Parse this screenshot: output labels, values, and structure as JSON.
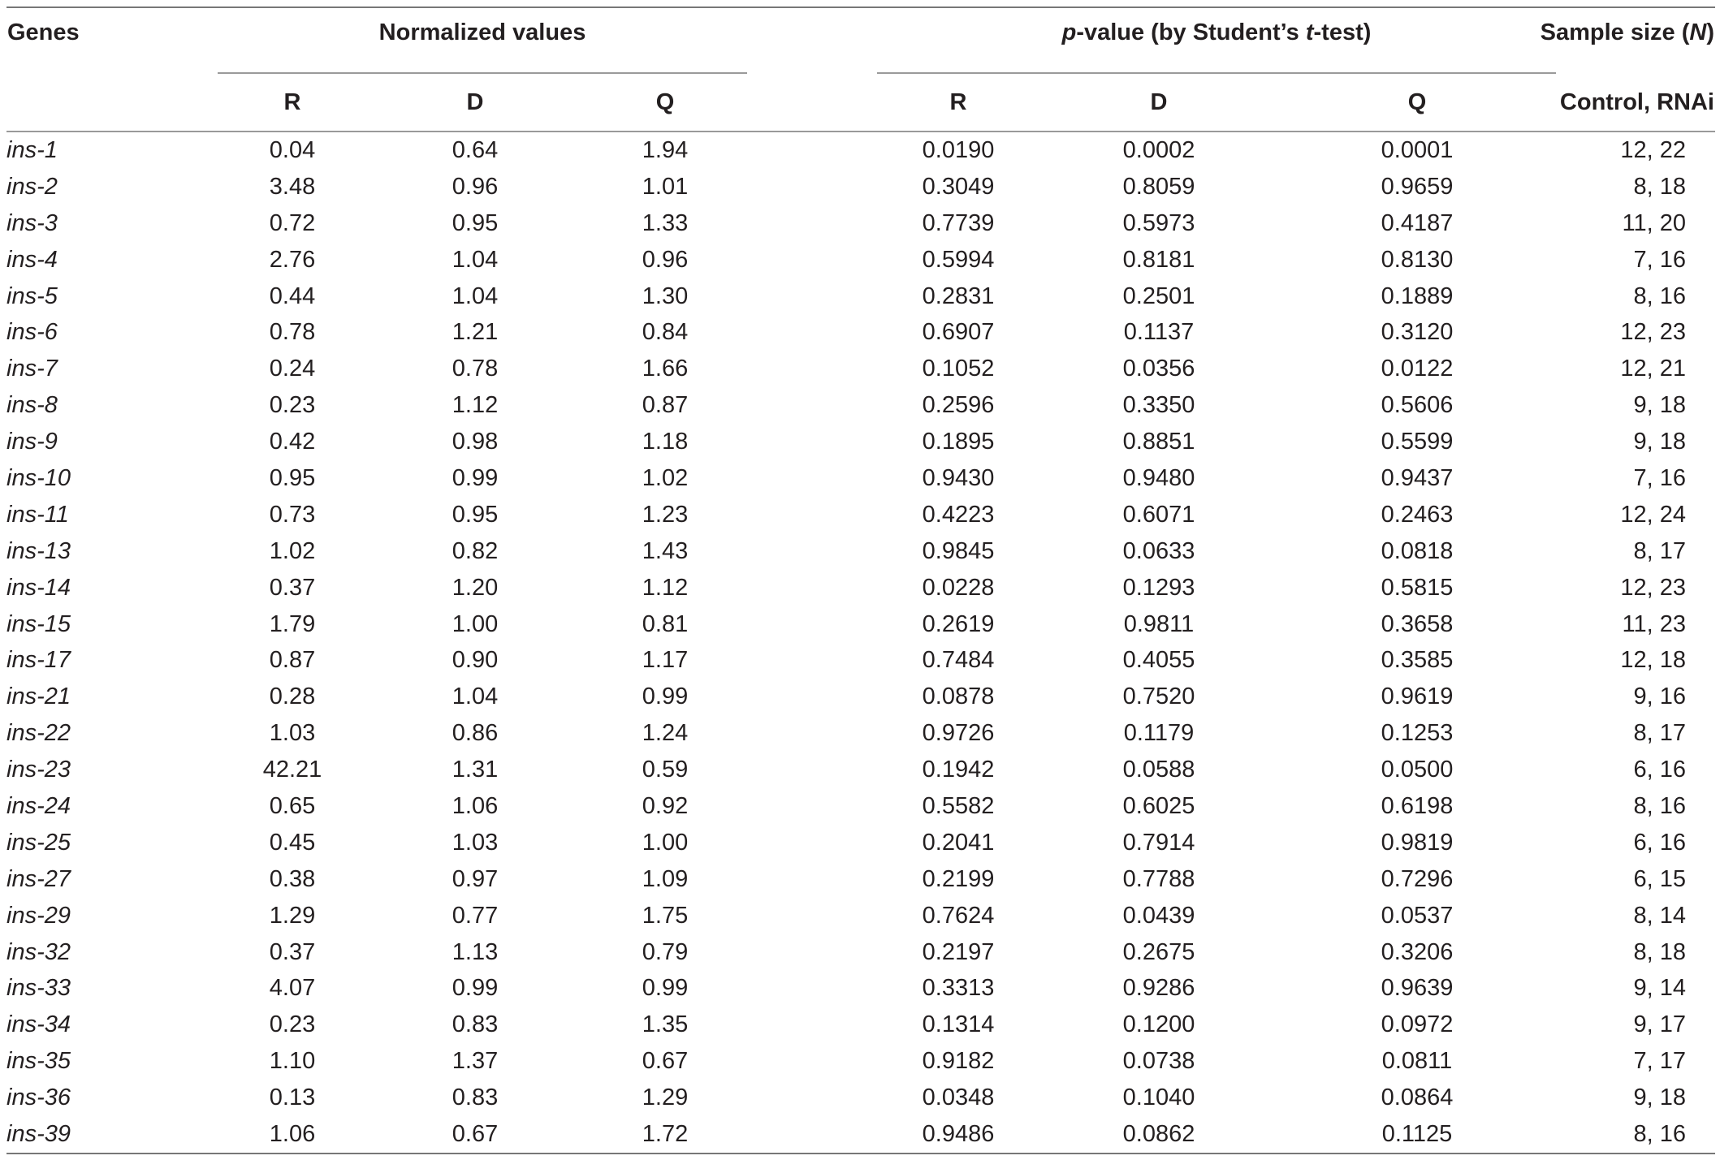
{
  "header": {
    "genes_label": "Genes",
    "normalized_label": "Normalized values",
    "pvalue_label_p": "p",
    "pvalue_label_rest": "-value (by Student’s ",
    "pvalue_label_t": "t",
    "pvalue_label_end": "-test)",
    "sample_label_main": "Sample size (",
    "sample_label_n": "N",
    "sample_label_end": ")",
    "sub_r": "R",
    "sub_d": "D",
    "sub_q": "Q",
    "sub_pr": "R",
    "sub_pd": "D",
    "sub_pq": "Q",
    "sub_sample": "Control, RNAi"
  },
  "rows": [
    {
      "gene": "ins-1",
      "r": "0.04",
      "d": "0.64",
      "q": "1.94",
      "pr": "0.0190",
      "pd": "0.0002",
      "pq": "0.0001",
      "n": "12, 22"
    },
    {
      "gene": "ins-2",
      "r": "3.48",
      "d": "0.96",
      "q": "1.01",
      "pr": "0.3049",
      "pd": "0.8059",
      "pq": "0.9659",
      "n": "8, 18"
    },
    {
      "gene": "ins-3",
      "r": "0.72",
      "d": "0.95",
      "q": "1.33",
      "pr": "0.7739",
      "pd": "0.5973",
      "pq": "0.4187",
      "n": "11, 20"
    },
    {
      "gene": "ins-4",
      "r": "2.76",
      "d": "1.04",
      "q": "0.96",
      "pr": "0.5994",
      "pd": "0.8181",
      "pq": "0.8130",
      "n": "7, 16"
    },
    {
      "gene": "ins-5",
      "r": "0.44",
      "d": "1.04",
      "q": "1.30",
      "pr": "0.2831",
      "pd": "0.2501",
      "pq": "0.1889",
      "n": "8, 16"
    },
    {
      "gene": "ins-6",
      "r": "0.78",
      "d": "1.21",
      "q": "0.84",
      "pr": "0.6907",
      "pd": "0.1137",
      "pq": "0.3120",
      "n": "12, 23"
    },
    {
      "gene": "ins-7",
      "r": "0.24",
      "d": "0.78",
      "q": "1.66",
      "pr": "0.1052",
      "pd": "0.0356",
      "pq": "0.0122",
      "n": "12, 21"
    },
    {
      "gene": "ins-8",
      "r": "0.23",
      "d": "1.12",
      "q": "0.87",
      "pr": "0.2596",
      "pd": "0.3350",
      "pq": "0.5606",
      "n": "9, 18"
    },
    {
      "gene": "ins-9",
      "r": "0.42",
      "d": "0.98",
      "q": "1.18",
      "pr": "0.1895",
      "pd": "0.8851",
      "pq": "0.5599",
      "n": "9, 18"
    },
    {
      "gene": "ins-10",
      "r": "0.95",
      "d": "0.99",
      "q": "1.02",
      "pr": "0.9430",
      "pd": "0.9480",
      "pq": "0.9437",
      "n": "7, 16"
    },
    {
      "gene": "ins-11",
      "r": "0.73",
      "d": "0.95",
      "q": "1.23",
      "pr": "0.4223",
      "pd": "0.6071",
      "pq": "0.2463",
      "n": "12, 24"
    },
    {
      "gene": "ins-13",
      "r": "1.02",
      "d": "0.82",
      "q": "1.43",
      "pr": "0.9845",
      "pd": "0.0633",
      "pq": "0.0818",
      "n": "8, 17"
    },
    {
      "gene": "ins-14",
      "r": "0.37",
      "d": "1.20",
      "q": "1.12",
      "pr": "0.0228",
      "pd": "0.1293",
      "pq": "0.5815",
      "n": "12, 23"
    },
    {
      "gene": "ins-15",
      "r": "1.79",
      "d": "1.00",
      "q": "0.81",
      "pr": "0.2619",
      "pd": "0.9811",
      "pq": "0.3658",
      "n": "11, 23"
    },
    {
      "gene": "ins-17",
      "r": "0.87",
      "d": "0.90",
      "q": "1.17",
      "pr": "0.7484",
      "pd": "0.4055",
      "pq": "0.3585",
      "n": "12, 18"
    },
    {
      "gene": "ins-21",
      "r": "0.28",
      "d": "1.04",
      "q": "0.99",
      "pr": "0.0878",
      "pd": "0.7520",
      "pq": "0.9619",
      "n": "9, 16"
    },
    {
      "gene": "ins-22",
      "r": "1.03",
      "d": "0.86",
      "q": "1.24",
      "pr": "0.9726",
      "pd": "0.1179",
      "pq": "0.1253",
      "n": "8, 17"
    },
    {
      "gene": "ins-23",
      "r": "42.21",
      "d": "1.31",
      "q": "0.59",
      "pr": "0.1942",
      "pd": "0.0588",
      "pq": "0.0500",
      "n": "6, 16"
    },
    {
      "gene": "ins-24",
      "r": "0.65",
      "d": "1.06",
      "q": "0.92",
      "pr": "0.5582",
      "pd": "0.6025",
      "pq": "0.6198",
      "n": "8, 16"
    },
    {
      "gene": "ins-25",
      "r": "0.45",
      "d": "1.03",
      "q": "1.00",
      "pr": "0.2041",
      "pd": "0.7914",
      "pq": "0.9819",
      "n": "6, 16"
    },
    {
      "gene": "ins-27",
      "r": "0.38",
      "d": "0.97",
      "q": "1.09",
      "pr": "0.2199",
      "pd": "0.7788",
      "pq": "0.7296",
      "n": "6, 15"
    },
    {
      "gene": "ins-29",
      "r": "1.29",
      "d": "0.77",
      "q": "1.75",
      "pr": "0.7624",
      "pd": "0.0439",
      "pq": "0.0537",
      "n": "8, 14"
    },
    {
      "gene": "ins-32",
      "r": "0.37",
      "d": "1.13",
      "q": "0.79",
      "pr": "0.2197",
      "pd": "0.2675",
      "pq": "0.3206",
      "n": "8, 18"
    },
    {
      "gene": "ins-33",
      "r": "4.07",
      "d": "0.99",
      "q": "0.99",
      "pr": "0.3313",
      "pd": "0.9286",
      "pq": "0.9639",
      "n": "9, 14"
    },
    {
      "gene": "ins-34",
      "r": "0.23",
      "d": "0.83",
      "q": "1.35",
      "pr": "0.1314",
      "pd": "0.1200",
      "pq": "0.0972",
      "n": "9, 17"
    },
    {
      "gene": "ins-35",
      "r": "1.10",
      "d": "1.37",
      "q": "0.67",
      "pr": "0.9182",
      "pd": "0.0738",
      "pq": "0.0811",
      "n": "7, 17"
    },
    {
      "gene": "ins-36",
      "r": "0.13",
      "d": "0.83",
      "q": "1.29",
      "pr": "0.0348",
      "pd": "0.1040",
      "pq": "0.0864",
      "n": "9, 18"
    },
    {
      "gene": "ins-39",
      "r": "1.06",
      "d": "0.67",
      "q": "1.72",
      "pr": "0.9486",
      "pd": "0.0862",
      "pq": "0.1125",
      "n": "8, 16"
    }
  ]
}
